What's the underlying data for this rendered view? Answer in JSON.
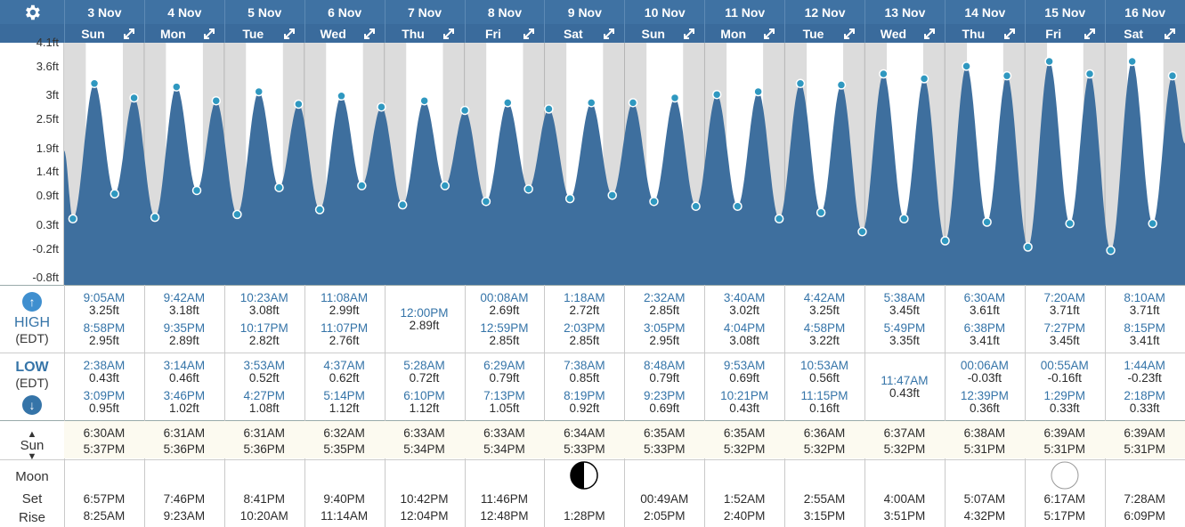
{
  "colors": {
    "header": "#3f72a3",
    "header2": "#3a6b9c",
    "tide": "#3e6f9e",
    "point": "#2f98c0",
    "night": "#dcdcdc",
    "day": "#ffffff",
    "label_blue": "#3574a8"
  },
  "days": [
    {
      "date": "3 Nov",
      "weekday": "Sun"
    },
    {
      "date": "4 Nov",
      "weekday": "Mon"
    },
    {
      "date": "5 Nov",
      "weekday": "Tue"
    },
    {
      "date": "6 Nov",
      "weekday": "Wed"
    },
    {
      "date": "7 Nov",
      "weekday": "Thu"
    },
    {
      "date": "8 Nov",
      "weekday": "Fri"
    },
    {
      "date": "9 Nov",
      "weekday": "Sat"
    },
    {
      "date": "10 Nov",
      "weekday": "Sun"
    },
    {
      "date": "11 Nov",
      "weekday": "Mon"
    },
    {
      "date": "12 Nov",
      "weekday": "Tue"
    },
    {
      "date": "13 Nov",
      "weekday": "Wed"
    },
    {
      "date": "14 Nov",
      "weekday": "Thu"
    },
    {
      "date": "15 Nov",
      "weekday": "Fri"
    },
    {
      "date": "16 Nov",
      "weekday": "Sat"
    }
  ],
  "row_labels": {
    "high": "HIGH",
    "high_tz": "(EDT)",
    "low": "LOW",
    "low_tz": "(EDT)",
    "sun": "Sun",
    "moon": "Moon",
    "set": "Set",
    "rise": "Rise"
  },
  "high": [
    [
      {
        "t": "9:05AM",
        "h": "3.25ft"
      },
      {
        "t": "8:58PM",
        "h": "2.95ft"
      }
    ],
    [
      {
        "t": "9:42AM",
        "h": "3.18ft"
      },
      {
        "t": "9:35PM",
        "h": "2.89ft"
      }
    ],
    [
      {
        "t": "10:23AM",
        "h": "3.08ft"
      },
      {
        "t": "10:17PM",
        "h": "2.82ft"
      }
    ],
    [
      {
        "t": "11:08AM",
        "h": "2.99ft"
      },
      {
        "t": "11:07PM",
        "h": "2.76ft"
      }
    ],
    [
      {
        "t": "12:00PM",
        "h": "2.89ft"
      }
    ],
    [
      {
        "t": "00:08AM",
        "h": "2.69ft"
      },
      {
        "t": "12:59PM",
        "h": "2.85ft"
      }
    ],
    [
      {
        "t": "1:18AM",
        "h": "2.72ft"
      },
      {
        "t": "2:03PM",
        "h": "2.85ft"
      }
    ],
    [
      {
        "t": "2:32AM",
        "h": "2.85ft"
      },
      {
        "t": "3:05PM",
        "h": "2.95ft"
      }
    ],
    [
      {
        "t": "3:40AM",
        "h": "3.02ft"
      },
      {
        "t": "4:04PM",
        "h": "3.08ft"
      }
    ],
    [
      {
        "t": "4:42AM",
        "h": "3.25ft"
      },
      {
        "t": "4:58PM",
        "h": "3.22ft"
      }
    ],
    [
      {
        "t": "5:38AM",
        "h": "3.45ft"
      },
      {
        "t": "5:49PM",
        "h": "3.35ft"
      }
    ],
    [
      {
        "t": "6:30AM",
        "h": "3.61ft"
      },
      {
        "t": "6:38PM",
        "h": "3.41ft"
      }
    ],
    [
      {
        "t": "7:20AM",
        "h": "3.71ft"
      },
      {
        "t": "7:27PM",
        "h": "3.45ft"
      }
    ],
    [
      {
        "t": "8:10AM",
        "h": "3.71ft"
      },
      {
        "t": "8:15PM",
        "h": "3.41ft"
      }
    ]
  ],
  "low": [
    [
      {
        "t": "2:38AM",
        "h": "0.43ft"
      },
      {
        "t": "3:09PM",
        "h": "0.95ft"
      }
    ],
    [
      {
        "t": "3:14AM",
        "h": "0.46ft"
      },
      {
        "t": "3:46PM",
        "h": "1.02ft"
      }
    ],
    [
      {
        "t": "3:53AM",
        "h": "0.52ft"
      },
      {
        "t": "4:27PM",
        "h": "1.08ft"
      }
    ],
    [
      {
        "t": "4:37AM",
        "h": "0.62ft"
      },
      {
        "t": "5:14PM",
        "h": "1.12ft"
      }
    ],
    [
      {
        "t": "5:28AM",
        "h": "0.72ft"
      },
      {
        "t": "6:10PM",
        "h": "1.12ft"
      }
    ],
    [
      {
        "t": "6:29AM",
        "h": "0.79ft"
      },
      {
        "t": "7:13PM",
        "h": "1.05ft"
      }
    ],
    [
      {
        "t": "7:38AM",
        "h": "0.85ft"
      },
      {
        "t": "8:19PM",
        "h": "0.92ft"
      }
    ],
    [
      {
        "t": "8:48AM",
        "h": "0.79ft"
      },
      {
        "t": "9:23PM",
        "h": "0.69ft"
      }
    ],
    [
      {
        "t": "9:53AM",
        "h": "0.69ft"
      },
      {
        "t": "10:21PM",
        "h": "0.43ft"
      }
    ],
    [
      {
        "t": "10:53AM",
        "h": "0.56ft"
      },
      {
        "t": "11:15PM",
        "h": "0.16ft"
      }
    ],
    [
      {
        "t": "11:47AM",
        "h": "0.43ft"
      }
    ],
    [
      {
        "t": "00:06AM",
        "h": "-0.03ft"
      },
      {
        "t": "12:39PM",
        "h": "0.36ft"
      }
    ],
    [
      {
        "t": "00:55AM",
        "h": "-0.16ft"
      },
      {
        "t": "1:29PM",
        "h": "0.33ft"
      }
    ],
    [
      {
        "t": "1:44AM",
        "h": "-0.23ft"
      },
      {
        "t": "2:18PM",
        "h": "0.33ft"
      }
    ]
  ],
  "sun": [
    [
      "6:30AM",
      "5:37PM"
    ],
    [
      "6:31AM",
      "5:36PM"
    ],
    [
      "6:31AM",
      "5:36PM"
    ],
    [
      "6:32AM",
      "5:35PM"
    ],
    [
      "6:33AM",
      "5:34PM"
    ],
    [
      "6:33AM",
      "5:34PM"
    ],
    [
      "6:34AM",
      "5:33PM"
    ],
    [
      "6:35AM",
      "5:33PM"
    ],
    [
      "6:35AM",
      "5:32PM"
    ],
    [
      "6:36AM",
      "5:32PM"
    ],
    [
      "6:37AM",
      "5:32PM"
    ],
    [
      "6:38AM",
      "5:31PM"
    ],
    [
      "6:39AM",
      "5:31PM"
    ],
    [
      "6:39AM",
      "5:31PM"
    ]
  ],
  "moon": [
    [
      "6:57PM",
      "8:25AM"
    ],
    [
      "7:46PM",
      "9:23AM"
    ],
    [
      "8:41PM",
      "10:20AM"
    ],
    [
      "9:40PM",
      "11:14AM"
    ],
    [
      "10:42PM",
      "12:04PM"
    ],
    [
      "11:46PM",
      "12:48PM"
    ],
    [
      "",
      "1:28PM"
    ],
    [
      "00:49AM",
      "2:05PM"
    ],
    [
      "1:52AM",
      "2:40PM"
    ],
    [
      "2:55AM",
      "3:15PM"
    ],
    [
      "4:00AM",
      "3:51PM"
    ],
    [
      "5:07AM",
      "4:32PM"
    ],
    [
      "6:17AM",
      "5:17PM"
    ],
    [
      "7:28AM",
      "6:09PM"
    ]
  ],
  "moon_phase_icons": [
    {
      "day": 6,
      "icon": "first-quarter-moon-icon"
    },
    {
      "day": 12,
      "icon": "full-moon-icon"
    }
  ],
  "chart_data": {
    "type": "area",
    "title": "",
    "ylabel": "",
    "xlabel": "",
    "yticks": [
      "4.1ft",
      "3.6ft",
      "3ft",
      "2.5ft",
      "1.9ft",
      "1.4ft",
      "0.9ft",
      "0.3ft",
      "-0.2ft",
      "-0.8ft"
    ],
    "ylim": [
      -0.8,
      4.1
    ],
    "x_unit": "hours since 3 Nov 00:00 (EDT)",
    "xlim": [
      0,
      336
    ],
    "series": [
      {
        "points": [
          [
            2.63,
            0.43
          ],
          [
            9.08,
            3.25
          ],
          [
            15.15,
            0.95
          ],
          [
            20.97,
            2.95
          ],
          [
            27.23,
            0.46
          ],
          [
            33.7,
            3.18
          ],
          [
            39.77,
            1.02
          ],
          [
            45.58,
            2.89
          ],
          [
            51.88,
            0.52
          ],
          [
            58.38,
            3.08
          ],
          [
            64.45,
            1.08
          ],
          [
            70.28,
            2.82
          ],
          [
            76.62,
            0.62
          ],
          [
            83.13,
            2.99
          ],
          [
            89.23,
            1.12
          ],
          [
            95.12,
            2.76
          ],
          [
            101.47,
            0.72
          ],
          [
            108.0,
            2.89
          ],
          [
            114.17,
            1.12
          ],
          [
            120.13,
            2.69
          ],
          [
            126.48,
            0.79
          ],
          [
            132.98,
            2.85
          ],
          [
            139.22,
            1.05
          ],
          [
            145.3,
            2.72
          ],
          [
            151.63,
            0.85
          ],
          [
            158.05,
            2.85
          ],
          [
            164.32,
            0.92
          ],
          [
            170.53,
            2.85
          ],
          [
            176.8,
            0.79
          ],
          [
            183.08,
            2.95
          ],
          [
            189.38,
            0.69
          ],
          [
            195.67,
            3.02
          ],
          [
            201.88,
            0.69
          ],
          [
            208.07,
            3.08
          ],
          [
            214.35,
            0.43
          ],
          [
            220.7,
            3.25
          ],
          [
            226.88,
            0.56
          ],
          [
            232.97,
            3.22
          ],
          [
            239.25,
            0.16
          ],
          [
            245.63,
            3.45
          ],
          [
            251.78,
            0.43
          ],
          [
            257.82,
            3.35
          ],
          [
            264.1,
            -0.03
          ],
          [
            270.5,
            3.61
          ],
          [
            276.65,
            0.36
          ],
          [
            282.63,
            3.41
          ],
          [
            288.92,
            -0.16
          ],
          [
            295.33,
            3.71
          ],
          [
            301.48,
            0.33
          ],
          [
            307.45,
            3.45
          ],
          [
            313.73,
            -0.23
          ],
          [
            320.17,
            3.71
          ],
          [
            326.3,
            0.33
          ],
          [
            332.25,
            3.41
          ]
        ]
      }
    ],
    "grid": true
  }
}
